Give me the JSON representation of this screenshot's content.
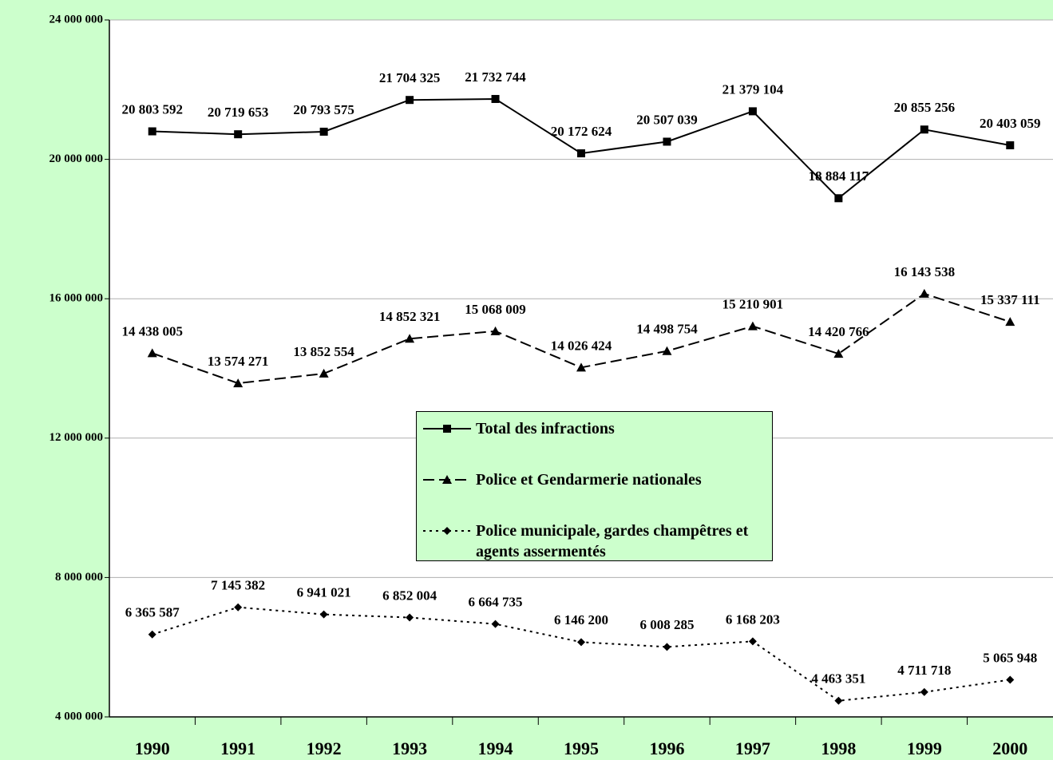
{
  "chart_data": {
    "type": "line",
    "categories": [
      "1990",
      "1991",
      "1992",
      "1993",
      "1994",
      "1995",
      "1996",
      "1997",
      "1998",
      "1999",
      "2000"
    ],
    "series": [
      {
        "name": "Total des infractions",
        "color": "#000000",
        "dash": "none",
        "marker": "square",
        "values": [
          20803592,
          20719653,
          20793575,
          21704325,
          21732744,
          20172624,
          20507039,
          21379104,
          18884117,
          20855256,
          20403059
        ],
        "value_labels": [
          "20 803 592",
          "20 719 653",
          "20 793 575",
          "21 704 325",
          "21 732 744",
          "20 172 624",
          "20 507 039",
          "21 379 104",
          "18 884 117",
          "20 855 256",
          "20 403 059"
        ]
      },
      {
        "name": "Police et Gendarmerie nationales",
        "color": "#000000",
        "dash": "14 6",
        "marker": "triangle",
        "values": [
          14438005,
          13574271,
          13852554,
          14852321,
          15068009,
          14026424,
          14498754,
          15210901,
          14420766,
          16143538,
          15337111
        ],
        "value_labels": [
          "14 438 005",
          "13 574 271",
          "13 852 554",
          "14 852 321",
          "15 068 009",
          "14 026 424",
          "14 498 754",
          "15 210 901",
          "14 420 766",
          "16 143 538",
          "15 337 111"
        ]
      },
      {
        "name": "Police municipale, gardes champêtres et agents assermentés",
        "color": "#000000",
        "dash": "3 5",
        "marker": "diamond",
        "values": [
          6365587,
          7145382,
          6941021,
          6852004,
          6664735,
          6146200,
          6008285,
          6168203,
          4463351,
          4711718,
          5065948
        ],
        "value_labels": [
          "6 365 587",
          "7 145 382",
          "6 941 021",
          "6 852 004",
          "6 664 735",
          "6 146 200",
          "6 008 285",
          "6 168 203",
          "4 463 351",
          "4 711 718",
          "5 065 948"
        ]
      }
    ],
    "ylim": [
      4000000,
      24000000
    ],
    "yticks": [
      {
        "value": 4000000,
        "label": "4 000 000"
      },
      {
        "value": 8000000,
        "label": "8 000 000"
      },
      {
        "value": 12000000,
        "label": "12 000 000"
      },
      {
        "value": 16000000,
        "label": "16 000 000"
      },
      {
        "value": 20000000,
        "label": "20 000 000"
      },
      {
        "value": 24000000,
        "label": "24 000 000"
      }
    ],
    "grid": true,
    "legend": "center"
  }
}
